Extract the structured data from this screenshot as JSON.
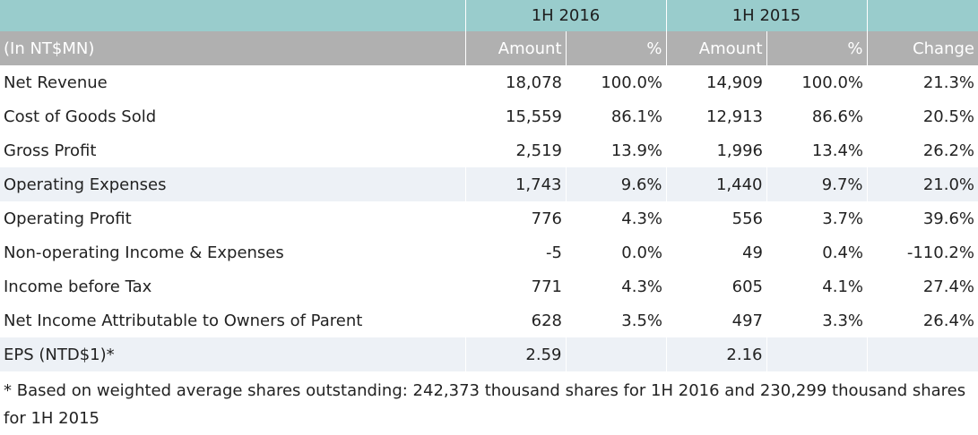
{
  "table": {
    "period_headers": [
      "1H 2016",
      "1H 2015"
    ],
    "unit_label": "(In NT$MN)",
    "column_headers": [
      "Amount",
      "%",
      "Amount",
      "%",
      "Change"
    ],
    "rows": [
      {
        "label": "Net Revenue",
        "a2016": "18,078",
        "p2016": "100.0%",
        "a2015": "14,909",
        "p2015": "100.0%",
        "change": "21.3%"
      },
      {
        "label": "Cost of Goods Sold",
        "a2016": "15,559",
        "p2016": "86.1%",
        "a2015": "12,913",
        "p2015": "86.6%",
        "change": "20.5%"
      },
      {
        "label": "Gross Profit",
        "a2016": "2,519",
        "p2016": "13.9%",
        "a2015": "1,996",
        "p2015": "13.4%",
        "change": "26.2%"
      },
      {
        "label": "Operating Expenses",
        "a2016": "1,743",
        "p2016": "9.6%",
        "a2015": "1,440",
        "p2015": "9.7%",
        "change": "21.0%"
      },
      {
        "label": "Operating Profit",
        "a2016": "776",
        "p2016": "4.3%",
        "a2015": "556",
        "p2015": "3.7%",
        "change": "39.6%"
      },
      {
        "label": "Non-operating Income & Expenses",
        "a2016": "-5",
        "p2016": "0.0%",
        "a2015": "49",
        "p2015": "0.4%",
        "change": "-110.2%"
      },
      {
        "label": "Income before Tax",
        "a2016": "771",
        "p2016": "4.3%",
        "a2015": "605",
        "p2015": "4.1%",
        "change": "27.4%"
      },
      {
        "label": "Net Income Attributable to Owners of Parent",
        "a2016": "628",
        "p2016": "3.5%",
        "a2015": "497",
        "p2015": "3.3%",
        "change": "26.4%"
      },
      {
        "label": "EPS (NTD$1)*",
        "a2016": "2.59",
        "p2016": "",
        "a2015": "2.16",
        "p2015": "",
        "change": ""
      }
    ],
    "footnote": "* Based on weighted average shares outstanding: 242,373 thousand shares for 1H 2016 and 230,299 thousand shares for 1H 2015"
  },
  "colors": {
    "header_teal": "#99cccc",
    "header_gray": "#b0b0b0",
    "row_shade": "#edf1f6"
  }
}
